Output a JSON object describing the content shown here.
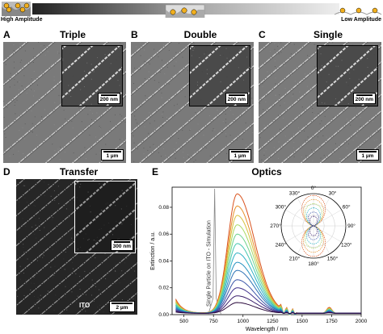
{
  "banner": {
    "high_label": "High Amplitude",
    "low_label": "Low Amplitude"
  },
  "panels": {
    "A": {
      "letter": "A",
      "title": "Triple",
      "main_scale": "1 µm",
      "inset_scale": "200 nm"
    },
    "B": {
      "letter": "B",
      "title": "Double",
      "main_scale": "1 µm",
      "inset_scale": "200 nm"
    },
    "C": {
      "letter": "C",
      "title": "Single",
      "main_scale": "1 µm",
      "inset_scale": "200 nm"
    },
    "D": {
      "letter": "D",
      "title": "Transfer",
      "main_scale": "2 µm",
      "inset_scale": "300 nm",
      "substrate_label": "ITO"
    },
    "E": {
      "letter": "E",
      "title": "Optics"
    }
  },
  "colors": {
    "sem_bg": "#7a7a7a",
    "sem_dark": "#262626",
    "series_palette": [
      "#2b0a3d",
      "#3b1f6b",
      "#40318c",
      "#3a55a8",
      "#2f73b5",
      "#2591c0",
      "#2cb0c4",
      "#45c7b0",
      "#6fd38e",
      "#a9d861",
      "#d8c13e",
      "#e8902a",
      "#d9531e"
    ]
  },
  "chart_data": {
    "type": "line",
    "title": "Optics",
    "xlabel": "Wavelength / nm",
    "ylabel": "Extinction / a.u.",
    "xlim": [
      400,
      2000
    ],
    "ylim": [
      0,
      0.095
    ],
    "xticks": [
      500,
      750,
      1000,
      1250,
      1500,
      1750,
      2000
    ],
    "yticks": [
      0.0,
      0.02,
      0.04,
      0.06,
      0.08
    ],
    "annotation": "Single Particle on ITO - Simulation",
    "simulation_peak_nm": 760,
    "series": [
      {
        "peak_nm": 950,
        "amplitude": 0.089
      },
      {
        "peak_nm": 950,
        "amplitude": 0.08
      },
      {
        "peak_nm": 950,
        "amplitude": 0.073
      },
      {
        "peak_nm": 950,
        "amplitude": 0.066
      },
      {
        "peak_nm": 950,
        "amplitude": 0.059
      },
      {
        "peak_nm": 950,
        "amplitude": 0.052
      },
      {
        "peak_nm": 950,
        "amplitude": 0.045
      },
      {
        "peak_nm": 950,
        "amplitude": 0.038
      },
      {
        "peak_nm": 950,
        "amplitude": 0.032
      },
      {
        "peak_nm": 950,
        "amplitude": 0.025
      },
      {
        "peak_nm": 950,
        "amplitude": 0.019
      },
      {
        "peak_nm": 950,
        "amplitude": 0.013
      },
      {
        "peak_nm": 950,
        "amplitude": 0.008
      }
    ],
    "polar_inset": {
      "angle_labels": [
        "0°",
        "30°",
        "60°",
        "90°",
        "120°",
        "150°",
        "180°",
        "210°",
        "240°",
        "270°",
        "300°",
        "330°"
      ]
    }
  }
}
